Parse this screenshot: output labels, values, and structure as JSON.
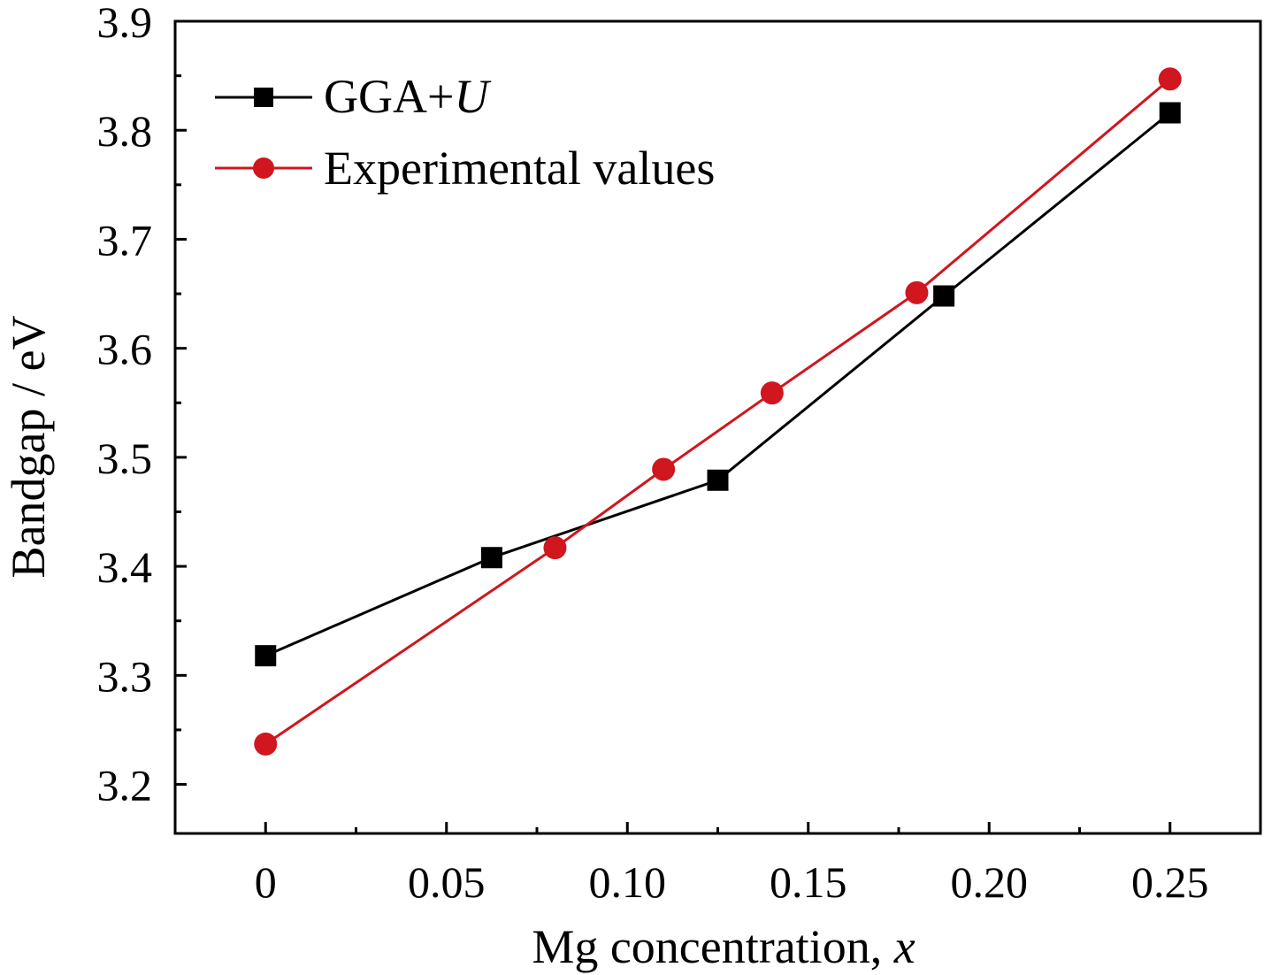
{
  "chart_data": {
    "type": "line",
    "xlabel": "Mg concentration, ",
    "xlabel_var": "x",
    "ylabel": "Bandgap / eV",
    "xlim": [
      -0.025,
      0.275
    ],
    "ylim": [
      3.155,
      3.9
    ],
    "x_ticks": [
      0,
      0.05,
      0.1,
      0.15,
      0.2,
      0.25
    ],
    "x_tick_labels": [
      "0",
      "0.05",
      "0.10",
      "0.15",
      "0.20",
      "0.25"
    ],
    "y_ticks": [
      3.2,
      3.3,
      3.4,
      3.5,
      3.6,
      3.7,
      3.8,
      3.9
    ],
    "y_tick_labels": [
      "3.2",
      "3.3",
      "3.4",
      "3.5",
      "3.6",
      "3.7",
      "3.8",
      "3.9"
    ],
    "grid": false,
    "legend_position": "top-left",
    "series": [
      {
        "name": "GGA+",
        "name_italic": "U",
        "color": "#000000",
        "marker": "square",
        "x": [
          0,
          0.0625,
          0.125,
          0.1875,
          0.25
        ],
        "y": [
          3.318,
          3.408,
          3.479,
          3.648,
          3.816
        ]
      },
      {
        "name": "Experimental values",
        "color": "#d0161e",
        "marker": "circle",
        "x": [
          0,
          0.08,
          0.11,
          0.14,
          0.18,
          0.25
        ],
        "y": [
          3.237,
          3.417,
          3.489,
          3.559,
          3.651,
          3.847
        ]
      }
    ]
  }
}
